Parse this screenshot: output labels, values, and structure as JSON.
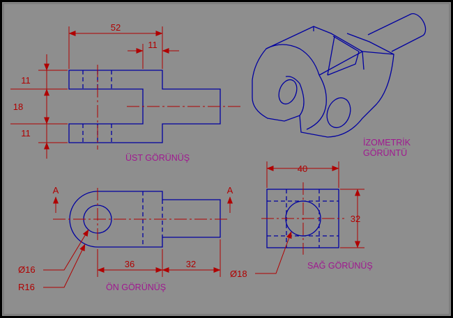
{
  "colors": {
    "background": "#8e8e8e",
    "object_line": "#0000a0",
    "dimension": "#b00000",
    "view_title": "#a01890",
    "frame": "#000000"
  },
  "dimensions": {
    "top_width": "52",
    "top_tab": "11",
    "top_upper": "11",
    "top_mid": "18",
    "top_lower": "11",
    "front_body": "36",
    "front_shaft": "32",
    "dia_hole": "Ø16",
    "radius": "R16",
    "side_width": "40",
    "side_height": "32",
    "side_dia": "Ø18"
  },
  "section_marks": {
    "left": "A",
    "right": "A"
  },
  "view_titles": {
    "top": "ÜST GÖRÜNÜŞ",
    "front": "ÖN GÖRÜNÜŞ",
    "side": "SAĞ GÖRÜNÜŞ",
    "iso_line1": "İZOMETRİK",
    "iso_line2": "GÖRÜNTÜ"
  }
}
